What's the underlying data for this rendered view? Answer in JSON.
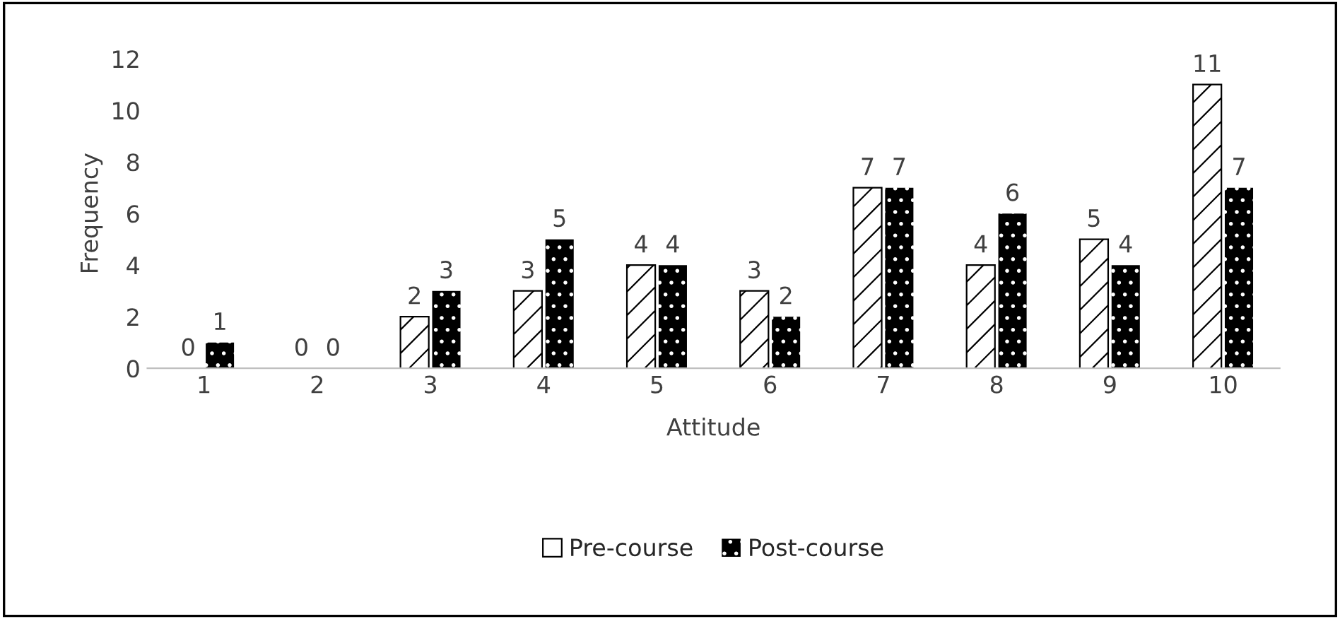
{
  "chart_data": {
    "type": "bar",
    "xlabel": "Attitude",
    "ylabel": "Frequency",
    "categories": [
      "1",
      "2",
      "3",
      "4",
      "5",
      "6",
      "7",
      "8",
      "9",
      "10"
    ],
    "series": [
      {
        "name": "Pre-course",
        "color": "#ffffff",
        "values": [
          0,
          0,
          2,
          3,
          4,
          3,
          7,
          4,
          5,
          11
        ]
      },
      {
        "name": "Post-course",
        "color": "#000000",
        "values": [
          1,
          0,
          3,
          5,
          4,
          2,
          7,
          6,
          4,
          7
        ]
      }
    ],
    "ylim": [
      0,
      12
    ],
    "yticks": [
      0,
      2,
      4,
      6,
      8,
      10,
      12
    ],
    "grid": false,
    "legend": "bottom",
    "data_labels": true
  }
}
